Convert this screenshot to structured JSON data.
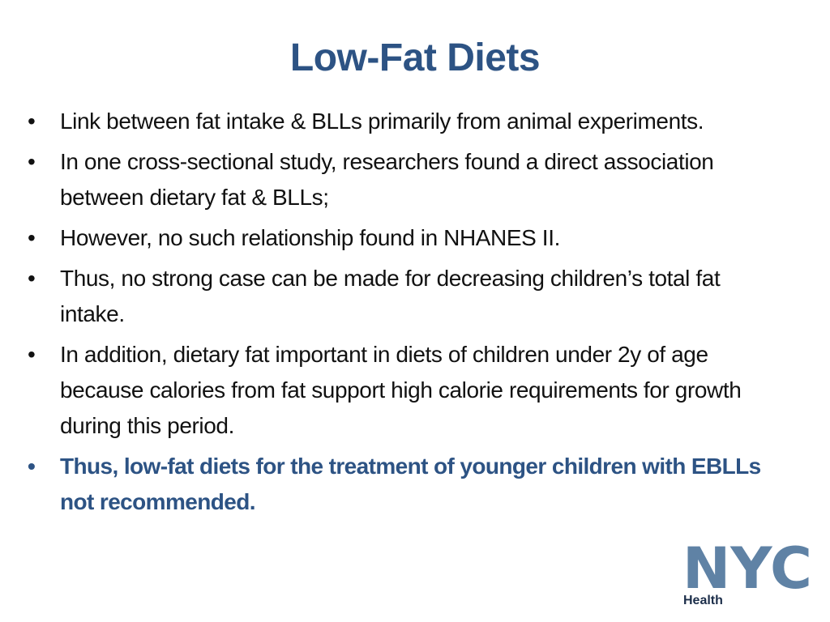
{
  "title": "Low-Fat Diets",
  "bullets": [
    "Link between fat intake & BLLs primarily from animal experiments.",
    "In one cross-sectional study, researchers found a direct association between dietary fat & BLLs;",
    "However, no such relationship found in NHANES II.",
    "Thus, no strong case can be made for decreasing children’s total fat intake.",
    "In addition, dietary fat important in diets of children under 2y of age because calories from fat support high calorie requirements for growth during this period.",
    "Thus, low-fat diets for the treatment of younger children with EBLLs not recommended."
  ],
  "logo": {
    "mark": "NYC",
    "subtext": "Health"
  }
}
